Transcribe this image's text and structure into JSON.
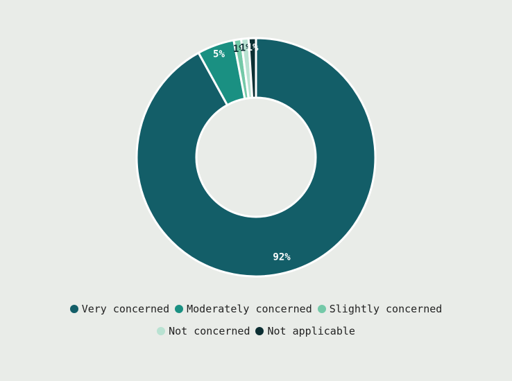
{
  "chart_data": {
    "type": "donut",
    "categories": [
      "Very concerned",
      "Moderately concerned",
      "Slightly concerned",
      "Not concerned",
      "Not applicable"
    ],
    "values": [
      92,
      5,
      1,
      1,
      1
    ],
    "value_labels": [
      "92%",
      "5%",
      "1%",
      "1%",
      "1%"
    ],
    "colors": [
      "#135e68",
      "#1a9082",
      "#74c9a8",
      "#b9e2d2",
      "#0c2f33"
    ],
    "label_colors": [
      "#ffffff",
      "#ffffff",
      "#0c2f33",
      "#0c2f33",
      "#ffffff"
    ]
  }
}
